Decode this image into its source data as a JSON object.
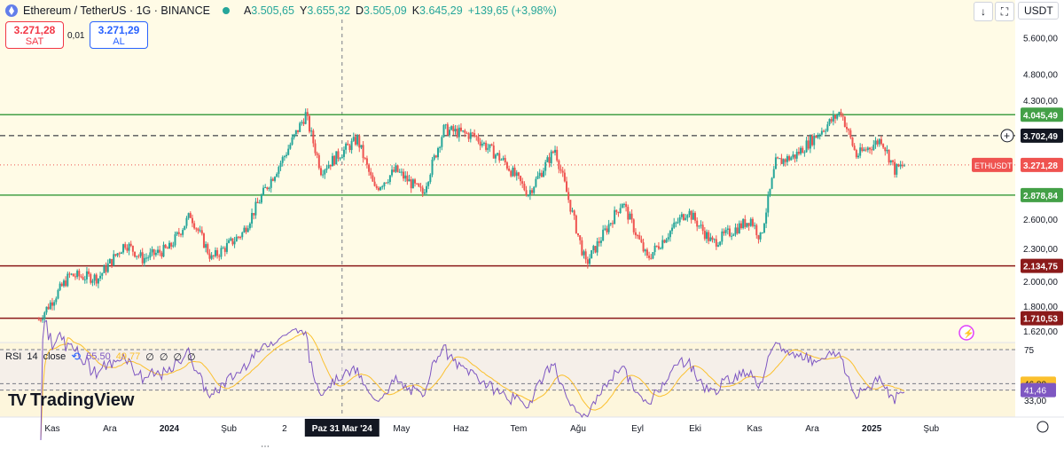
{
  "header": {
    "symbol": "Ethereum / TetherUS · 1G · BINANCE",
    "open_k": "A",
    "open": "3.505,65",
    "high_k": "Y",
    "high": "3.655,32",
    "low_k": "D",
    "low": "3.505,09",
    "close_k": "K",
    "close": "3.645,29",
    "change": "+139,65 (+3,98%)"
  },
  "trade": {
    "sell_price": "3.271,28",
    "sell_label": "SAT",
    "spread": "0,01",
    "buy_price": "3.271,29",
    "buy_label": "AL"
  },
  "toolbar": {
    "download_icon": "down-arrow-icon",
    "fullscreen_icon": "fullscreen-icon",
    "currency": "USDT"
  },
  "rsi": {
    "label": "RSI",
    "length": "14",
    "source": "close",
    "value": "55,50",
    "ma_value": "49,77",
    "extras": [
      "∅",
      "∅",
      "∅",
      "∅"
    ]
  },
  "brand": {
    "logo_mark": "TV",
    "name": "TradingView"
  },
  "crosshair_date": "Paz 31 Mar '24",
  "colors": {
    "up": "#26a69a",
    "down": "#ef5350",
    "support": "#43a047",
    "resistance": "#8b1a1a",
    "rsi": "#7e57c2",
    "rsi_ma": "#fbc02d",
    "accent": "#2962ff"
  },
  "chart_data": {
    "type": "candlestick",
    "price_axis_scale": "log",
    "price_ticks": [
      "5.600,00",
      "4.800,00",
      "4.300,00",
      "2.600,00",
      "2.300,00",
      "2.000,00",
      "1.800,00",
      "1.620,00"
    ],
    "x_ticks": [
      "Kas",
      "Ara",
      "2024",
      "Şub",
      "2",
      "May",
      "Haz",
      "Tem",
      "Ağu",
      "Eyl",
      "Eki",
      "Kas",
      "Ara",
      "2025",
      "Şub"
    ],
    "levels": [
      {
        "value": 4045.49,
        "label": "4.045,49",
        "color": "#43a047"
      },
      {
        "value": 3702.49,
        "label": "3.702,49",
        "color": "#131722",
        "style": "dashed"
      },
      {
        "value": 2878.84,
        "label": "2.878,84",
        "color": "#43a047"
      },
      {
        "value": 2134.75,
        "label": "2.134,75",
        "color": "#8b1a1a"
      },
      {
        "value": 1710.53,
        "label": "1.710,53",
        "color": "#8b1a1a"
      }
    ],
    "last_price": {
      "symbol": "ETHUSDT",
      "value": 3271.28,
      "label": "3.271,28"
    },
    "price_path": [
      {
        "d": "2023-10-25",
        "p": 1700
      },
      {
        "d": "2023-11-10",
        "p": 2050
      },
      {
        "d": "2023-11-25",
        "p": 2030
      },
      {
        "d": "2023-12-09",
        "p": 2350
      },
      {
        "d": "2023-12-18",
        "p": 2200
      },
      {
        "d": "2024-01-01",
        "p": 2300
      },
      {
        "d": "2024-01-12",
        "p": 2650
      },
      {
        "d": "2024-01-23",
        "p": 2200
      },
      {
        "d": "2024-02-08",
        "p": 2450
      },
      {
        "d": "2024-02-20",
        "p": 2950
      },
      {
        "d": "2024-03-01",
        "p": 3400
      },
      {
        "d": "2024-03-12",
        "p": 4050
      },
      {
        "d": "2024-03-20",
        "p": 3200
      },
      {
        "d": "2024-04-08",
        "p": 3650
      },
      {
        "d": "2024-04-17",
        "p": 2950
      },
      {
        "d": "2024-04-28",
        "p": 3200
      },
      {
        "d": "2024-05-12",
        "p": 2900
      },
      {
        "d": "2024-05-23",
        "p": 3800
      },
      {
        "d": "2024-06-08",
        "p": 3700
      },
      {
        "d": "2024-06-24",
        "p": 3300
      },
      {
        "d": "2024-07-06",
        "p": 2900
      },
      {
        "d": "2024-07-20",
        "p": 3500
      },
      {
        "d": "2024-08-05",
        "p": 2150
      },
      {
        "d": "2024-08-24",
        "p": 2800
      },
      {
        "d": "2024-09-06",
        "p": 2200
      },
      {
        "d": "2024-09-27",
        "p": 2700
      },
      {
        "d": "2024-10-10",
        "p": 2350
      },
      {
        "d": "2024-10-30",
        "p": 2600
      },
      {
        "d": "2024-11-04",
        "p": 2400
      },
      {
        "d": "2024-11-12",
        "p": 3300
      },
      {
        "d": "2024-11-22",
        "p": 3400
      },
      {
        "d": "2024-12-16",
        "p": 4100
      },
      {
        "d": "2024-12-24",
        "p": 3400
      },
      {
        "d": "2025-01-06",
        "p": 3650
      },
      {
        "d": "2025-01-13",
        "p": 3200
      },
      {
        "d": "2025-01-18",
        "p": 3271
      }
    ],
    "rsi_levels": {
      "upper": "75",
      "middle": "46,80",
      "lower": "41,46",
      "bottom": "33,00"
    }
  }
}
